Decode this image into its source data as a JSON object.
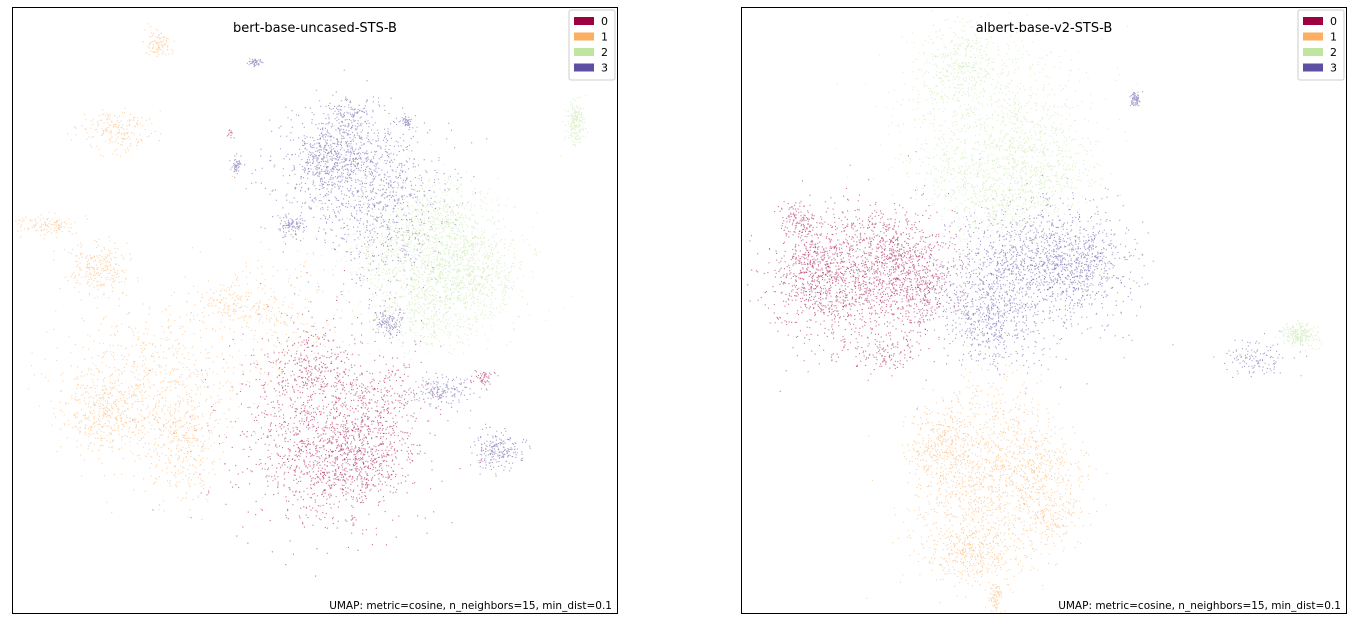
{
  "chart_data": [
    {
      "type": "scatter",
      "title": "bert-base-uncased-STS-B",
      "xlabel": "",
      "ylabel": "",
      "xlim": [
        0,
        100
      ],
      "ylim": [
        0,
        100
      ],
      "grid": false,
      "legend_position": "top-right",
      "annotation": "UMAP: metric=cosine, n_neighbors=15, min_dist=0.1",
      "series": [
        {
          "name": "0",
          "color": "#9e0142",
          "clusters": [
            {
              "x": 51,
              "y": 31,
              "sx": 8.5,
              "sy": 8.5,
              "w": 0.42
            },
            {
              "x": 53,
              "y": 25,
              "sx": 5.0,
              "sy": 4.5,
              "w": 0.18
            },
            {
              "x": 60,
              "y": 34,
              "sx": 4.0,
              "sy": 4.0,
              "w": 0.12
            },
            {
              "x": 49,
              "y": 41,
              "sx": 3.0,
              "sy": 3.0,
              "w": 0.08
            },
            {
              "x": 58,
              "y": 25,
              "sx": 3.5,
              "sy": 3.0,
              "w": 0.08
            },
            {
              "x": 78,
              "y": 39,
              "sx": 0.8,
              "sy": 0.6,
              "w": 0.02
            },
            {
              "x": 36,
              "y": 79,
              "sx": 0.4,
              "sy": 0.4,
              "w": 0.005
            },
            {
              "x": 56,
              "y": 16,
              "sx": 0.3,
              "sy": 0.3,
              "w": 0.003
            }
          ]
        },
        {
          "name": "1",
          "color": "#fdae61",
          "clusters": [
            {
              "x": 22,
              "y": 38,
              "sx": 8.0,
              "sy": 6.0,
              "w": 0.3
            },
            {
              "x": 28,
              "y": 28,
              "sx": 3.0,
              "sy": 4.5,
              "w": 0.14
            },
            {
              "x": 15,
              "y": 33,
              "sx": 3.5,
              "sy": 3.0,
              "w": 0.12
            },
            {
              "x": 14,
              "y": 57,
              "sx": 2.5,
              "sy": 2.0,
              "w": 0.1
            },
            {
              "x": 17,
              "y": 80,
              "sx": 3.0,
              "sy": 1.8,
              "w": 0.08
            },
            {
              "x": 6,
              "y": 64,
              "sx": 2.5,
              "sy": 0.8,
              "w": 0.05
            },
            {
              "x": 36,
              "y": 51,
              "sx": 3.5,
              "sy": 1.8,
              "w": 0.07
            },
            {
              "x": 24,
              "y": 94,
              "sx": 1.2,
              "sy": 1.2,
              "w": 0.04
            },
            {
              "x": 44,
              "y": 49,
              "sx": 7.0,
              "sy": 6.0,
              "w": 0.1
            }
          ]
        },
        {
          "name": "2",
          "color": "#bfe5a0",
          "clusters": [
            {
              "x": 69,
              "y": 60,
              "sx": 6.5,
              "sy": 5.5,
              "w": 0.55
            },
            {
              "x": 76,
              "y": 56,
              "sx": 4.0,
              "sy": 4.0,
              "w": 0.22
            },
            {
              "x": 68,
              "y": 49,
              "sx": 4.5,
              "sy": 3.0,
              "w": 0.12
            },
            {
              "x": 93,
              "y": 81,
              "sx": 0.8,
              "sy": 1.8,
              "w": 0.08
            },
            {
              "x": 70,
              "y": 66,
              "sx": 3.0,
              "sy": 2.0,
              "w": 0.05
            }
          ]
        },
        {
          "name": "3",
          "color": "#5e4fa2",
          "clusters": [
            {
              "x": 57,
              "y": 72,
              "sx": 6.5,
              "sy": 5.5,
              "w": 0.45
            },
            {
              "x": 52,
              "y": 76,
              "sx": 2.5,
              "sy": 2.5,
              "w": 0.12
            },
            {
              "x": 80,
              "y": 27,
              "sx": 2.0,
              "sy": 1.5,
              "w": 0.09
            },
            {
              "x": 71,
              "y": 37,
              "sx": 2.5,
              "sy": 1.2,
              "w": 0.07
            },
            {
              "x": 62,
              "y": 48,
              "sx": 1.2,
              "sy": 1.2,
              "w": 0.05
            },
            {
              "x": 56,
              "y": 82,
              "sx": 1.5,
              "sy": 1.5,
              "w": 0.05
            },
            {
              "x": 46,
              "y": 64,
              "sx": 1.2,
              "sy": 0.8,
              "w": 0.04
            },
            {
              "x": 37,
              "y": 74,
              "sx": 0.4,
              "sy": 0.8,
              "w": 0.02
            },
            {
              "x": 65,
              "y": 81,
              "sx": 0.4,
              "sy": 0.6,
              "w": 0.02
            },
            {
              "x": 40,
              "y": 91,
              "sx": 0.5,
              "sy": 0.3,
              "w": 0.02
            },
            {
              "x": 62,
              "y": 61,
              "sx": 5.0,
              "sy": 5.0,
              "w": 0.07
            }
          ]
        }
      ]
    },
    {
      "type": "scatter",
      "title": "albert-base-v2-STS-B",
      "xlabel": "",
      "ylabel": "",
      "xlim": [
        0,
        100
      ],
      "ylim": [
        0,
        100
      ],
      "grid": false,
      "legend_position": "top-right",
      "annotation": "UMAP: metric=cosine, n_neighbors=15, min_dist=0.1",
      "series": [
        {
          "name": "0",
          "color": "#9e0142",
          "clusters": [
            {
              "x": 20,
              "y": 55,
              "sx": 6.5,
              "sy": 6.0,
              "w": 0.48
            },
            {
              "x": 12,
              "y": 56,
              "sx": 3.5,
              "sy": 4.0,
              "w": 0.18
            },
            {
              "x": 26,
              "y": 59,
              "sx": 4.0,
              "sy": 4.0,
              "w": 0.18
            },
            {
              "x": 30,
              "y": 53,
              "sx": 2.0,
              "sy": 2.5,
              "w": 0.07
            },
            {
              "x": 9,
              "y": 65,
              "sx": 1.5,
              "sy": 1.5,
              "w": 0.05
            },
            {
              "x": 24,
              "y": 43,
              "sx": 2.5,
              "sy": 1.5,
              "w": 0.04
            }
          ]
        },
        {
          "name": "1",
          "color": "#fdae61",
          "clusters": [
            {
              "x": 40,
              "y": 20,
              "sx": 6.0,
              "sy": 7.0,
              "w": 0.45
            },
            {
              "x": 33,
              "y": 28,
              "sx": 3.0,
              "sy": 3.0,
              "w": 0.13
            },
            {
              "x": 49,
              "y": 24,
              "sx": 3.5,
              "sy": 3.0,
              "w": 0.12
            },
            {
              "x": 38,
              "y": 10,
              "sx": 3.5,
              "sy": 2.5,
              "w": 0.12
            },
            {
              "x": 51,
              "y": 16,
              "sx": 2.5,
              "sy": 2.5,
              "w": 0.08
            },
            {
              "x": 42,
              "y": 33,
              "sx": 4.0,
              "sy": 4.0,
              "w": 0.07
            },
            {
              "x": 42,
              "y": 3,
              "sx": 0.5,
              "sy": 1.2,
              "w": 0.03
            }
          ]
        },
        {
          "name": "2",
          "color": "#bfe5a0",
          "clusters": [
            {
              "x": 42,
              "y": 80,
              "sx": 8.0,
              "sy": 8.0,
              "w": 0.4
            },
            {
              "x": 36,
              "y": 90,
              "sx": 3.5,
              "sy": 4.0,
              "w": 0.15
            },
            {
              "x": 49,
              "y": 74,
              "sx": 4.5,
              "sy": 4.0,
              "w": 0.17
            },
            {
              "x": 43,
              "y": 68,
              "sx": 4.0,
              "sy": 3.0,
              "w": 0.12
            },
            {
              "x": 34,
              "y": 73,
              "sx": 3.0,
              "sy": 3.0,
              "w": 0.06
            },
            {
              "x": 92,
              "y": 46,
              "sx": 1.5,
              "sy": 1.0,
              "w": 0.1
            }
          ]
        },
        {
          "name": "3",
          "color": "#5e4fa2",
          "clusters": [
            {
              "x": 47,
              "y": 57,
              "sx": 7.0,
              "sy": 5.5,
              "w": 0.4
            },
            {
              "x": 55,
              "y": 58,
              "sx": 4.5,
              "sy": 4.0,
              "w": 0.25
            },
            {
              "x": 39,
              "y": 52,
              "sx": 4.0,
              "sy": 4.0,
              "w": 0.15
            },
            {
              "x": 42,
              "y": 46,
              "sx": 3.0,
              "sy": 3.0,
              "w": 0.08
            },
            {
              "x": 85,
              "y": 42,
              "sx": 3.0,
              "sy": 1.5,
              "w": 0.05
            },
            {
              "x": 65,
              "y": 85,
              "sx": 0.4,
              "sy": 0.6,
              "w": 0.03
            },
            {
              "x": 50,
              "y": 52,
              "sx": 6.0,
              "sy": 6.0,
              "w": 0.04
            }
          ]
        }
      ]
    }
  ]
}
